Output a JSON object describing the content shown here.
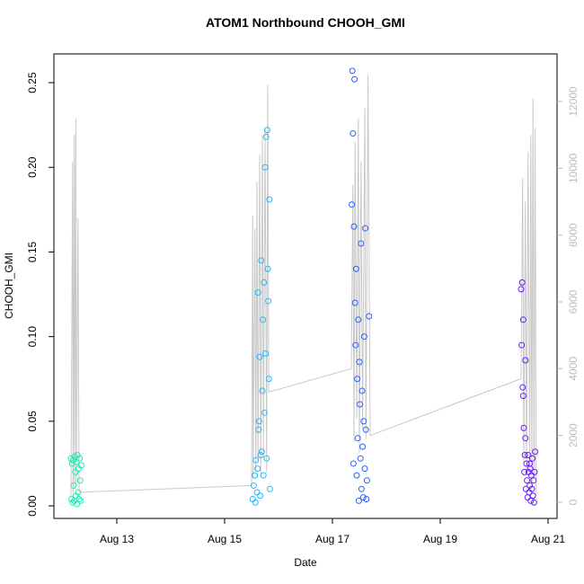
{
  "chart_data": {
    "type": "scatter",
    "title": "ATOM1 Northbound CHOOH_GMI",
    "x_label": "Date",
    "y_label": "CHOOH_GMI",
    "xlim": [
      11.833,
      21.167
    ],
    "xticks": [
      {
        "value": 13,
        "label": "Aug 13"
      },
      {
        "value": 15,
        "label": "Aug 15"
      },
      {
        "value": 17,
        "label": "Aug 17"
      },
      {
        "value": 19,
        "label": "Aug 19"
      },
      {
        "value": 21,
        "label": "Aug 21"
      }
    ],
    "ylim": [
      -0.0074,
      0.267
    ],
    "yticks": [
      {
        "value": 0,
        "label": "0.00"
      },
      {
        "value": 0.05,
        "label": "0.05"
      },
      {
        "value": 0.1,
        "label": "0.10"
      },
      {
        "value": 0.15,
        "label": "0.15"
      },
      {
        "value": 0.2,
        "label": "0.20"
      },
      {
        "value": 0.25,
        "label": "0.25"
      }
    ],
    "y2lim": [
      -484,
      13425
    ],
    "y2ticks": [
      0,
      2000,
      4000,
      6000,
      8000,
      10000,
      12000
    ],
    "series": [
      {
        "type": "line",
        "axis": "y2",
        "color": "#c8c8c8",
        "x": [
          12.15,
          12.18,
          12.19,
          12.21,
          12.22,
          12.24,
          12.25,
          12.28,
          12.3,
          15.5,
          15.52,
          15.53,
          15.56,
          15.58,
          15.6,
          15.62,
          15.65,
          15.67,
          15.7,
          15.72,
          15.75,
          15.78,
          15.8,
          15.82,
          17.35,
          17.38,
          17.4,
          17.42,
          17.45,
          17.48,
          17.5,
          17.53,
          17.56,
          17.6,
          17.62,
          17.66,
          17.7,
          20.5,
          20.53,
          20.55,
          20.58,
          20.6,
          20.63,
          20.66,
          20.68,
          20.7,
          20.72,
          20.74,
          20.76,
          20.78
        ],
        "values": [
          200,
          10200,
          300,
          11000,
          400,
          11500,
          500,
          8500,
          300,
          500,
          8600,
          700,
          8200,
          900,
          9600,
          1200,
          10400,
          800,
          11000,
          1500,
          11200,
          900,
          12500,
          3300,
          4000,
          9500,
          1800,
          10800,
          2500,
          11500,
          1500,
          10200,
          2200,
          11800,
          1900,
          12800,
          2000,
          3700,
          9700,
          1200,
          9000,
          800,
          10500,
          900,
          11000,
          500,
          12100,
          700,
          11200,
          200
        ]
      },
      {
        "type": "scatter",
        "color": "#1de9b6",
        "x": [
          12.15,
          12.16,
          12.17,
          12.18,
          12.19,
          12.2,
          12.21,
          12.22,
          12.23,
          12.24,
          12.25,
          12.26,
          12.27,
          12.28,
          12.29,
          12.3,
          12.31,
          12.32,
          12.33,
          12.34
        ],
        "values": [
          0.028,
          0.004,
          0.025,
          0.002,
          0.027,
          0.012,
          0.003,
          0.029,
          0.02,
          0.006,
          0.026,
          0.001,
          0.03,
          0.008,
          0.022,
          0.004,
          0.028,
          0.015,
          0.003,
          0.024
        ]
      },
      {
        "type": "scatter",
        "color": "#29b6f6",
        "x": [
          15.52,
          15.54,
          15.56,
          15.57,
          15.58,
          15.6,
          15.61,
          15.62,
          15.63,
          15.64,
          15.65,
          15.66,
          15.67,
          15.68,
          15.69,
          15.7,
          15.71,
          15.72,
          15.73,
          15.74,
          15.75,
          15.76,
          15.77,
          15.78,
          15.79,
          15.8,
          15.81,
          15.82,
          15.83,
          15.84
        ],
        "values": [
          0.004,
          0.012,
          0.018,
          0.002,
          0.027,
          0.008,
          0.022,
          0.126,
          0.045,
          0.05,
          0.088,
          0.006,
          0.03,
          0.145,
          0.032,
          0.068,
          0.11,
          0.018,
          0.132,
          0.055,
          0.2,
          0.09,
          0.218,
          0.028,
          0.222,
          0.14,
          0.121,
          0.075,
          0.181,
          0.01
        ]
      },
      {
        "type": "scatter",
        "color": "#2962ff",
        "x": [
          17.36,
          17.37,
          17.38,
          17.39,
          17.4,
          17.41,
          17.42,
          17.43,
          17.44,
          17.45,
          17.46,
          17.47,
          17.48,
          17.49,
          17.5,
          17.51,
          17.52,
          17.53,
          17.54,
          17.55,
          17.56,
          17.57,
          17.58,
          17.59,
          17.6,
          17.61,
          17.62,
          17.63,
          17.64,
          17.68
        ],
        "values": [
          0.178,
          0.257,
          0.22,
          0.025,
          0.165,
          0.252,
          0.12,
          0.095,
          0.14,
          0.018,
          0.075,
          0.04,
          0.11,
          0.003,
          0.085,
          0.06,
          0.028,
          0.155,
          0.01,
          0.068,
          0.035,
          0.005,
          0.05,
          0.1,
          0.022,
          0.164,
          0.045,
          0.004,
          0.015,
          0.112
        ]
      },
      {
        "type": "scatter",
        "color": "#6a1bff",
        "x": [
          20.5,
          20.51,
          20.52,
          20.53,
          20.54,
          20.55,
          20.56,
          20.57,
          20.58,
          20.59,
          20.6,
          20.61,
          20.62,
          20.63,
          20.64,
          20.65,
          20.66,
          20.67,
          20.68,
          20.69,
          20.7,
          20.71,
          20.72,
          20.73,
          20.74,
          20.75,
          20.76,
          20.54,
          20.58,
          20.66
        ],
        "values": [
          0.128,
          0.095,
          0.132,
          0.07,
          0.11,
          0.046,
          0.02,
          0.03,
          0.086,
          0.01,
          0.025,
          0.015,
          0.005,
          0.03,
          0.02,
          0.008,
          0.012,
          0.022,
          0.003,
          0.018,
          0.01,
          0.028,
          0.006,
          0.015,
          0.002,
          0.02,
          0.032,
          0.065,
          0.04,
          0.025
        ]
      }
    ]
  }
}
